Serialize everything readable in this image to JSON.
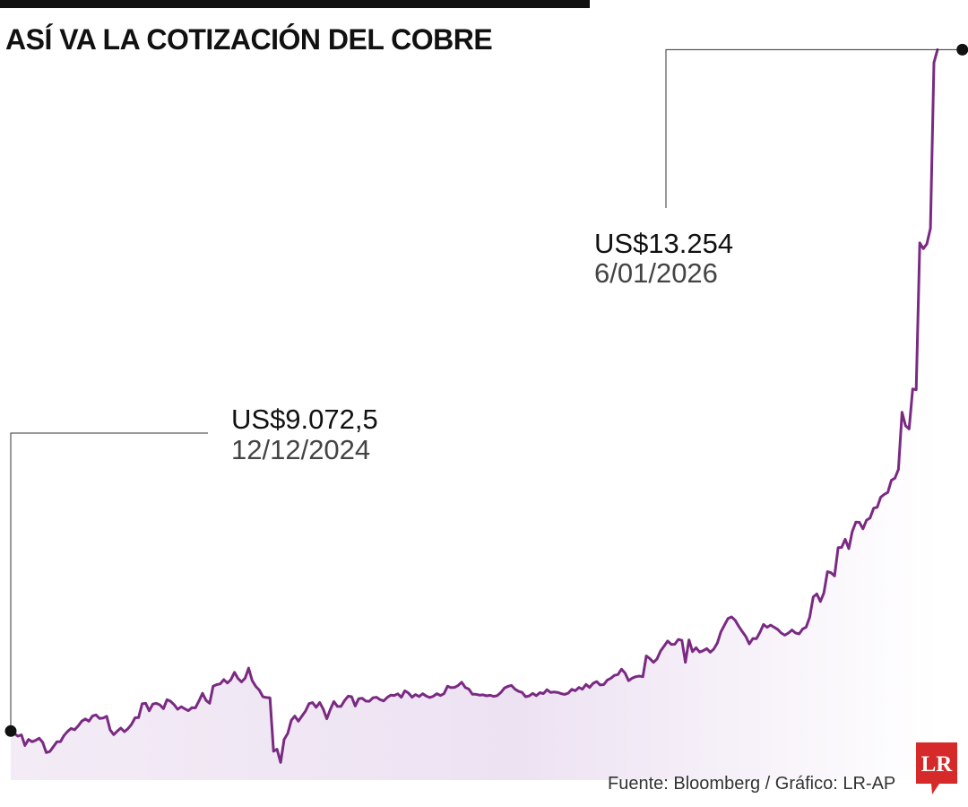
{
  "title": "ASÍ VA LA COTIZACIÓN DEL COBRE",
  "source": "Fuente: Bloomberg / Gráfico: LR-AP",
  "logo_text": "LR",
  "colors": {
    "line": "#7a2a82",
    "area": "#efe4f3",
    "brand": "#d62a2a",
    "marker": "#111111"
  },
  "chart_data": {
    "type": "area",
    "title": "ASÍ VA LA COTIZACIÓN DEL COBRE",
    "unit": "US$",
    "xlabel": "",
    "ylabel": "",
    "grid": false,
    "ylim": [
      8700,
      13300
    ],
    "annotations": [
      {
        "label": "US$9.072,5",
        "date": "12/12/2024",
        "value": 9072.5,
        "index": 0
      },
      {
        "label": "US$13.254",
        "date": "6/01/2026",
        "value": 13254,
        "index": 268
      }
    ],
    "values": [
      9072.5,
      9058.4,
      9041.3,
      9049.2,
      8983.7,
      9021.0,
      9007.1,
      9015.2,
      9028.4,
      9002.7,
      8940.3,
      8946.8,
      8976.1,
      9007.2,
      9007.5,
      9045.2,
      9070.2,
      9088.4,
      9080.9,
      9104.3,
      9133.1,
      9146.8,
      9132.9,
      9164.4,
      9171.4,
      9149.9,
      9152.3,
      9163.5,
      9079.0,
      9050.5,
      9072.4,
      9090.8,
      9068.7,
      9086.6,
      9113.2,
      9154.1,
      9154.9,
      9239.8,
      9243.3,
      9197.1,
      9238.1,
      9242.6,
      9233.1,
      9210.1,
      9265.0,
      9255.4,
      9235.1,
      9206.3,
      9221.9,
      9209.3,
      9197.6,
      9215.5,
      9215.1,
      9257.5,
      9303.9,
      9260.9,
      9242.9,
      9348.1,
      9357.6,
      9362.0,
      9388.1,
      9367.3,
      9388.6,
      9432.7,
      9395.5,
      9374.1,
      9397.7,
      9458.9,
      9381.9,
      9346.6,
      9324.1,
      9283.5,
      9278.1,
      9276.8,
      8948.9,
      8960.9,
      8879.9,
      9021.1,
      9057.9,
      9138.8,
      9164.4,
      9133.1,
      9164.9,
      9194.9,
      9241.1,
      9247.0,
      9218.5,
      9247.7,
      9207.7,
      9147.7,
      9206.2,
      9253.6,
      9224.1,
      9223.3,
      9259.4,
      9286.6,
      9283.3,
      9226.8,
      9271.0,
      9273.1,
      9256.5,
      9255.1,
      9276.7,
      9280.0,
      9265.9,
      9257.2,
      9278.5,
      9292.6,
      9290.8,
      9300.9,
      9280.0,
      9319.6,
      9305.6,
      9280.6,
      9296.7,
      9284.6,
      9301.5,
      9287.7,
      9278.1,
      9286.0,
      9301.8,
      9291.0,
      9301.3,
      9347.5,
      9339.2,
      9340.4,
      9352.8,
      9372.6,
      9339.8,
      9330.2,
      9298.8,
      9298.1,
      9293.2,
      9295.0,
      9288.5,
      9292.1,
      9285.4,
      9289.7,
      9308.6,
      9336.3,
      9346.5,
      9352.7,
      9329.7,
      9317.0,
      9309.6,
      9283.3,
      9288.4,
      9303.4,
      9289.2,
      9307.8,
      9302.3,
      9326.4,
      9309.9,
      9312.3,
      9309.7,
      9301.7,
      9297.6,
      9305.1,
      9328.5,
      9320.2,
      9339.7,
      9329.3,
      9358.6,
      9339.9,
      9365.1,
      9376.4,
      9355.2,
      9357.7,
      9385.4,
      9396.4,
      9414.3,
      9418.9,
      9452.4,
      9428.3,
      9381.6,
      9397.0,
      9406.2,
      9409.8,
      9406.1,
      9533.4,
      9516.5,
      9494.1,
      9515.1,
      9563.8,
      9594.0,
      9625.0,
      9604.5,
      9605.2,
      9634.8,
      9628.9,
      9494.0,
      9631.9,
      9560.0,
      9583.9,
      9557.5,
      9565.4,
      9578.7,
      9555.9,
      9575.9,
      9613.6,
      9681.1,
      9723.1,
      9763.6,
      9772.7,
      9752.4,
      9716.4,
      9683.5,
      9652.4,
      9607.6,
      9640.2,
      9639.6,
      9679.1,
      9726.6,
      9709.4,
      9723.0,
      9709.1,
      9696.7,
      9674.0,
      9660.5,
      9673.9,
      9692.7,
      9674.8,
      9668.4,
      9698.8,
      9710.4,
      9771.3,
      9894.6,
      9914.1,
      9867.7,
      9919.9,
      10050.9,
      10044.2,
      10024.5,
      10197.9,
      10199.6,
      10249.4,
      10191.7,
      10297.6,
      10354.8,
      10353.5,
      10313.2,
      10366.9,
      10379.7,
      10439.8,
      10445.7,
      10507.5,
      10525.4,
      10536.8,
      10611.0,
      10624.7,
      10678.6,
      11029.3,
      10946.1,
      10926.4,
      11171.6,
      11167.3,
      12067.9,
      12032.9,
      12061.7,
      12157.3,
      13174.7,
      13254.0
    ]
  }
}
